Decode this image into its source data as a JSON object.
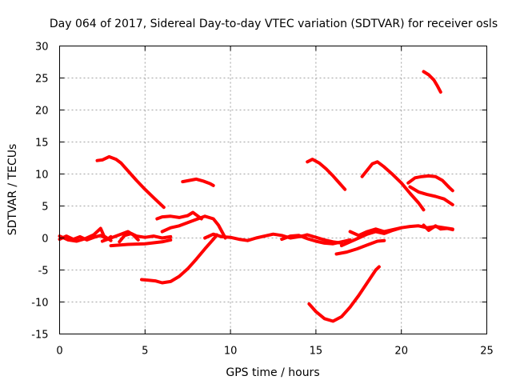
{
  "chart_data": {
    "type": "scatter",
    "title": "Day 064 of 2017, Sidereal Day-to-day VTEC variation (SDTVAR) for receiver osls",
    "xlabel": "GPS time / hours",
    "ylabel": "SDTVAR / TECUs",
    "xlim": [
      0,
      25
    ],
    "ylim": [
      -15,
      30
    ],
    "xticks": [
      0,
      5,
      10,
      15,
      20,
      25
    ],
    "xtick_labels": [
      "0",
      "5",
      "10",
      "15",
      "20",
      "25"
    ],
    "yticks": [
      -15,
      -10,
      -5,
      0,
      5,
      10,
      15,
      20,
      25,
      30
    ],
    "ytick_labels": [
      "-15",
      "-10",
      "-5",
      "0",
      "5",
      "10",
      "15",
      "20",
      "25",
      "30"
    ],
    "grid": true,
    "marker_color": "#ff0000",
    "series": [
      {
        "name": "seg-01",
        "points": [
          [
            0,
            -0.2
          ],
          [
            0.4,
            0.3
          ],
          [
            0.8,
            -0.2
          ],
          [
            1.2,
            0.2
          ],
          [
            1.6,
            -0.3
          ],
          [
            2.0,
            0.1
          ],
          [
            2.4,
            0.4
          ],
          [
            2.8,
            -0.2
          ],
          [
            3.0,
            0.2
          ]
        ]
      },
      {
        "name": "seg-02",
        "points": [
          [
            0,
            0.3
          ],
          [
            0.5,
            -0.3
          ],
          [
            1.0,
            -0.5
          ],
          [
            1.5,
            -0.1
          ],
          [
            2.0,
            0.5
          ],
          [
            2.4,
            1.5
          ],
          [
            2.6,
            0.3
          ],
          [
            3.0,
            -0.4
          ]
        ]
      },
      {
        "name": "seg-03",
        "points": [
          [
            2.5,
            -0.5
          ],
          [
            3.0,
            0.0
          ],
          [
            3.5,
            0.5
          ],
          [
            4.0,
            1.0
          ],
          [
            4.3,
            0.5
          ],
          [
            4.6,
            -0.3
          ]
        ]
      },
      {
        "name": "seg-04",
        "points": [
          [
            3.0,
            -1.2
          ],
          [
            4.0,
            -1.0
          ],
          [
            5.0,
            -0.9
          ],
          [
            6.0,
            -0.6
          ],
          [
            6.5,
            -0.3
          ]
        ]
      },
      {
        "name": "seg-05",
        "points": [
          [
            3.5,
            -0.6
          ],
          [
            3.8,
            0.4
          ],
          [
            4.2,
            0.7
          ],
          [
            4.5,
            0.3
          ],
          [
            5.0,
            0.1
          ],
          [
            5.5,
            0.3
          ],
          [
            6.0,
            0.0
          ],
          [
            6.5,
            0.2
          ]
        ]
      },
      {
        "name": "seg-06",
        "points": [
          [
            2.2,
            12.1
          ],
          [
            2.5,
            12.2
          ],
          [
            2.9,
            12.7
          ],
          [
            3.3,
            12.3
          ],
          [
            3.6,
            11.7
          ],
          [
            4.0,
            10.5
          ],
          [
            4.5,
            9.0
          ],
          [
            5.0,
            7.6
          ],
          [
            5.5,
            6.3
          ],
          [
            5.9,
            5.3
          ],
          [
            6.1,
            4.8
          ]
        ]
      },
      {
        "name": "seg-07",
        "points": [
          [
            5.7,
            3.0
          ],
          [
            6.0,
            3.3
          ],
          [
            6.5,
            3.4
          ],
          [
            7.0,
            3.2
          ],
          [
            7.5,
            3.5
          ],
          [
            7.8,
            4.0
          ],
          [
            8.0,
            3.6
          ],
          [
            8.3,
            3.0
          ]
        ]
      },
      {
        "name": "seg-08",
        "points": [
          [
            6.0,
            1.0
          ],
          [
            6.5,
            1.6
          ],
          [
            7.0,
            1.9
          ],
          [
            7.5,
            2.4
          ],
          [
            8.0,
            2.9
          ],
          [
            8.5,
            3.4
          ],
          [
            9.0,
            3.0
          ],
          [
            9.3,
            2.0
          ],
          [
            9.5,
            1.0
          ],
          [
            9.7,
            0.0
          ]
        ]
      },
      {
        "name": "seg-09",
        "points": [
          [
            7.2,
            8.8
          ],
          [
            7.6,
            9.0
          ],
          [
            8.0,
            9.2
          ],
          [
            8.4,
            8.9
          ],
          [
            8.8,
            8.5
          ],
          [
            9.0,
            8.2
          ]
        ]
      },
      {
        "name": "seg-10",
        "points": [
          [
            4.8,
            -6.5
          ],
          [
            5.2,
            -6.6
          ],
          [
            5.6,
            -6.7
          ],
          [
            6.0,
            -7.0
          ],
          [
            6.5,
            -6.8
          ],
          [
            7.0,
            -6.0
          ],
          [
            7.5,
            -4.8
          ],
          [
            8.0,
            -3.3
          ],
          [
            8.5,
            -1.7
          ],
          [
            9.0,
            -0.2
          ],
          [
            9.2,
            0.5
          ]
        ]
      },
      {
        "name": "seg-11",
        "points": [
          [
            8.5,
            0.0
          ],
          [
            9.0,
            0.6
          ],
          [
            9.5,
            0.2
          ],
          [
            10.0,
            0.1
          ],
          [
            10.5,
            -0.2
          ],
          [
            11.0,
            -0.4
          ],
          [
            11.5,
            0.0
          ],
          [
            12.0,
            0.3
          ],
          [
            12.5,
            0.6
          ],
          [
            13.0,
            0.4
          ],
          [
            13.5,
            0.0
          ],
          [
            14.0,
            0.2
          ],
          [
            14.5,
            0.5
          ],
          [
            15.0,
            0.1
          ],
          [
            15.5,
            -0.3
          ],
          [
            16.0,
            -0.6
          ],
          [
            16.5,
            -0.8
          ]
        ]
      },
      {
        "name": "seg-12",
        "points": [
          [
            13.0,
            -0.2
          ],
          [
            13.5,
            0.3
          ],
          [
            14.0,
            0.4
          ],
          [
            14.5,
            -0.1
          ],
          [
            15.0,
            -0.5
          ],
          [
            15.5,
            -0.8
          ],
          [
            16.0,
            -0.9
          ],
          [
            16.5,
            -0.6
          ],
          [
            17.0,
            -0.3
          ]
        ]
      },
      {
        "name": "seg-13",
        "points": [
          [
            14.5,
            11.9
          ],
          [
            14.8,
            12.3
          ],
          [
            15.2,
            11.7
          ],
          [
            15.6,
            10.8
          ],
          [
            16.0,
            9.7
          ],
          [
            16.4,
            8.5
          ],
          [
            16.7,
            7.6
          ]
        ]
      },
      {
        "name": "seg-14",
        "points": [
          [
            14.6,
            -10.3
          ],
          [
            15.0,
            -11.5
          ],
          [
            15.5,
            -12.6
          ],
          [
            16.0,
            -13.0
          ],
          [
            16.5,
            -12.3
          ],
          [
            17.0,
            -10.8
          ],
          [
            17.5,
            -9.0
          ],
          [
            18.0,
            -7.0
          ],
          [
            18.5,
            -5.0
          ],
          [
            18.7,
            -4.5
          ]
        ]
      },
      {
        "name": "seg-15",
        "points": [
          [
            16.2,
            -2.5
          ],
          [
            16.8,
            -2.2
          ],
          [
            17.4,
            -1.7
          ],
          [
            18.0,
            -1.1
          ],
          [
            18.6,
            -0.5
          ],
          [
            19.0,
            -0.4
          ]
        ]
      },
      {
        "name": "seg-16",
        "points": [
          [
            16.5,
            -1.2
          ],
          [
            17.0,
            -0.6
          ],
          [
            17.5,
            0.0
          ],
          [
            18.0,
            0.6
          ],
          [
            18.5,
            1.0
          ],
          [
            19.0,
            0.7
          ],
          [
            19.5,
            1.2
          ],
          [
            20.0,
            1.6
          ],
          [
            20.5,
            1.8
          ],
          [
            21.0,
            1.9
          ],
          [
            21.5,
            1.6
          ],
          [
            22.0,
            1.8
          ],
          [
            22.5,
            1.6
          ],
          [
            23.0,
            1.4
          ]
        ]
      },
      {
        "name": "seg-17",
        "points": [
          [
            17.0,
            1.0
          ],
          [
            17.5,
            0.4
          ],
          [
            18.0,
            1.0
          ],
          [
            18.5,
            1.4
          ],
          [
            19.0,
            1.0
          ],
          [
            19.5,
            1.3
          ],
          [
            20.0,
            1.6
          ]
        ]
      },
      {
        "name": "seg-18",
        "points": [
          [
            17.7,
            9.6
          ],
          [
            18.0,
            10.6
          ],
          [
            18.3,
            11.6
          ],
          [
            18.6,
            11.9
          ],
          [
            19.0,
            11.1
          ],
          [
            19.5,
            9.9
          ],
          [
            20.0,
            8.6
          ],
          [
            20.5,
            7.0
          ],
          [
            21.0,
            5.5
          ],
          [
            21.3,
            4.4
          ]
        ]
      },
      {
        "name": "seg-19",
        "points": [
          [
            20.5,
            8.0
          ],
          [
            21.0,
            7.2
          ],
          [
            21.5,
            6.8
          ],
          [
            22.0,
            6.5
          ],
          [
            22.5,
            6.1
          ],
          [
            23.0,
            5.2
          ]
        ]
      },
      {
        "name": "seg-20",
        "points": [
          [
            20.4,
            8.6
          ],
          [
            20.8,
            9.4
          ],
          [
            21.2,
            9.6
          ],
          [
            21.6,
            9.7
          ],
          [
            22.0,
            9.6
          ],
          [
            22.4,
            9.0
          ],
          [
            22.8,
            7.9
          ],
          [
            23.0,
            7.4
          ]
        ]
      },
      {
        "name": "seg-21",
        "points": [
          [
            21.3,
            2.0
          ],
          [
            21.6,
            1.2
          ],
          [
            22.0,
            1.9
          ],
          [
            22.3,
            1.4
          ],
          [
            22.7,
            1.5
          ],
          [
            23.0,
            1.3
          ]
        ]
      },
      {
        "name": "seg-22",
        "points": [
          [
            21.3,
            26.0
          ],
          [
            21.6,
            25.5
          ],
          [
            21.9,
            24.7
          ],
          [
            22.1,
            23.8
          ],
          [
            22.3,
            22.8
          ]
        ]
      }
    ]
  }
}
